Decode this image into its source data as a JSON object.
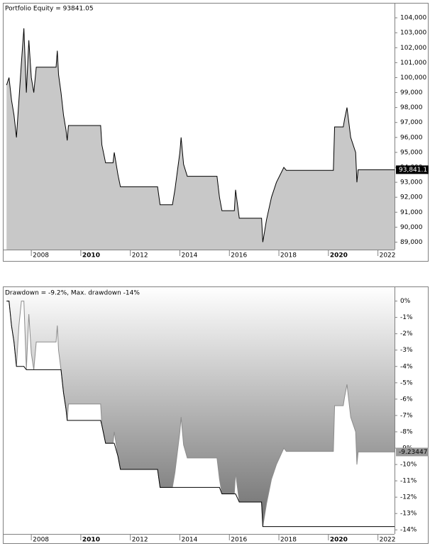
{
  "chart_data": [
    {
      "type": "area",
      "title": "Portfolio Equity = 93841.05",
      "x": [
        2007.0,
        2007.1,
        2007.2,
        2007.3,
        2007.4,
        2007.5,
        2007.6,
        2007.7,
        2007.8,
        2007.9,
        2008.0,
        2008.1,
        2008.2,
        2008.6,
        2009.0,
        2009.05,
        2009.1,
        2009.2,
        2009.3,
        2009.4,
        2009.45,
        2009.5,
        2010.1,
        2010.8,
        2010.85,
        2011.0,
        2011.3,
        2011.35,
        2011.5,
        2011.6,
        2013.1,
        2013.2,
        2013.7,
        2013.8,
        2014.0,
        2014.05,
        2014.15,
        2014.3,
        2015.5,
        2015.6,
        2015.7,
        2016.2,
        2016.25,
        2016.4,
        2017.3,
        2017.35,
        2017.5,
        2017.7,
        2017.9,
        2018.2,
        2018.3,
        2020.2,
        2020.25,
        2020.6,
        2020.65,
        2020.75,
        2020.9,
        2021.1,
        2021.15,
        2021.2,
        2022.67
      ],
      "series": [
        {
          "color": "#000000",
          "fill": "below",
          "fill_colors": [
            "#c8c8c8",
            "#c8c8c8"
          ],
          "values": [
            99500,
            100000,
            98500,
            97500,
            96000,
            98500,
            101000,
            103300,
            99000,
            102500,
            100000,
            99000,
            100700,
            100700,
            100700,
            101800,
            100200,
            99000,
            97500,
            96500,
            95800,
            96800,
            96800,
            96800,
            95500,
            94300,
            94300,
            95000,
            93500,
            92700,
            92700,
            91500,
            91500,
            92500,
            95000,
            96000,
            94200,
            93400,
            93400,
            92000,
            91100,
            91100,
            92500,
            90600,
            90600,
            89000,
            90500,
            92000,
            93000,
            94000,
            93800,
            93800,
            96700,
            96700,
            97200,
            98000,
            96000,
            95000,
            93000,
            93841.05,
            93841.05
          ]
        }
      ],
      "marker": {
        "value": 93841.1,
        "label": "93,841.1",
        "color": "#000000",
        "text_color": "#ffffff"
      },
      "xlim": [
        2006.85,
        2022.67
      ],
      "xticks": [
        2008,
        2010,
        2012,
        2014,
        2016,
        2018,
        2020,
        2022
      ],
      "xtick_bold": [
        false,
        true,
        false,
        false,
        false,
        false,
        true,
        false
      ],
      "ylim": [
        88500,
        105000
      ],
      "yticks": [
        {
          "value": 89000,
          "label": "89,000"
        },
        {
          "value": 90000,
          "label": "90,000"
        },
        {
          "value": 91000,
          "label": "91,000"
        },
        {
          "value": 92000,
          "label": "92,000"
        },
        {
          "value": 93000,
          "label": "93,000"
        },
        {
          "value": 94000,
          "label": "94,000"
        },
        {
          "value": 95000,
          "label": "95,000"
        },
        {
          "value": 96000,
          "label": "96,000"
        },
        {
          "value": 97000,
          "label": "97,000"
        },
        {
          "value": 98000,
          "label": "98,000"
        },
        {
          "value": 99000,
          "label": "99,000"
        },
        {
          "value": 100000,
          "label": "100,000"
        },
        {
          "value": 101000,
          "label": "101,000"
        },
        {
          "value": 102000,
          "label": "102,000"
        },
        {
          "value": 103000,
          "label": "103,000"
        },
        {
          "value": 104000,
          "label": "104,000"
        }
      ]
    },
    {
      "type": "area",
      "title": "Drawdown = -9.2%, Max. drawdown -14%",
      "x": [
        2007.0,
        2007.1,
        2007.2,
        2007.3,
        2007.4,
        2007.5,
        2007.6,
        2007.7,
        2007.8,
        2007.9,
        2008.0,
        2008.1,
        2008.2,
        2008.6,
        2009.0,
        2009.05,
        2009.1,
        2009.2,
        2009.3,
        2009.4,
        2009.45,
        2009.5,
        2010.1,
        2010.8,
        2010.85,
        2011.0,
        2011.3,
        2011.35,
        2011.5,
        2011.6,
        2013.1,
        2013.2,
        2013.7,
        2013.8,
        2014.0,
        2014.05,
        2014.15,
        2014.3,
        2015.5,
        2015.6,
        2015.7,
        2016.2,
        2016.25,
        2016.4,
        2017.3,
        2017.35,
        2017.5,
        2017.7,
        2017.9,
        2018.2,
        2018.3,
        2020.2,
        2020.25,
        2020.6,
        2020.65,
        2020.75,
        2020.9,
        2021.1,
        2021.15,
        2021.2,
        2022.67
      ],
      "series": [
        {
          "color": "#8c8c8c",
          "fill": "above",
          "fill_colors": [
            "#ffffff",
            "#6e6e6e"
          ],
          "values": [
            0,
            0,
            -1.5,
            -2.5,
            -4,
            -1.5,
            0,
            0,
            -4.2,
            -0.8,
            -3.2,
            -4.2,
            -2.5,
            -2.5,
            -2.5,
            -1.5,
            -3,
            -4.2,
            -5.6,
            -6.6,
            -7.3,
            -6.3,
            -6.3,
            -6.3,
            -7.6,
            -8.7,
            -8.7,
            -8,
            -9.5,
            -10.3,
            -10.3,
            -11.4,
            -11.4,
            -10.5,
            -8,
            -7.1,
            -8.8,
            -9.6,
            -9.6,
            -10.9,
            -11.8,
            -11.8,
            -10.5,
            -12.3,
            -12.3,
            -13.8,
            -12.4,
            -10.9,
            -10,
            -9,
            -9.2,
            -9.2,
            -6.4,
            -6.4,
            -5.9,
            -5.1,
            -7.1,
            -8,
            -10,
            -9.23447,
            -9.23447
          ]
        },
        {
          "color": "#000000",
          "values": [
            0,
            0,
            -1.5,
            -2.5,
            -4,
            -4,
            -4,
            -4,
            -4.2,
            -4.2,
            -4.2,
            -4.2,
            -4.2,
            -4.2,
            -4.2,
            -4.2,
            -4.2,
            -4.2,
            -5.6,
            -6.6,
            -7.3,
            -7.3,
            -7.3,
            -7.3,
            -7.6,
            -8.7,
            -8.7,
            -8.7,
            -9.5,
            -10.3,
            -10.3,
            -11.4,
            -11.4,
            -11.4,
            -11.4,
            -11.4,
            -11.4,
            -11.4,
            -11.4,
            -11.4,
            -11.8,
            -11.8,
            -11.8,
            -12.3,
            -12.3,
            -13.8,
            -13.8,
            -13.8,
            -13.8,
            -13.8,
            -13.8,
            -13.8,
            -13.8,
            -13.8,
            -13.8,
            -13.8,
            -13.8,
            -13.8,
            -13.8,
            -13.8,
            -13.8
          ]
        }
      ],
      "marker": {
        "value": -9.23447,
        "label": "-9.23447",
        "color": "#9a9a9a",
        "text_color": "#000000"
      },
      "xlim": [
        2006.85,
        2022.67
      ],
      "xticks": [
        2008,
        2010,
        2012,
        2014,
        2016,
        2018,
        2020,
        2022
      ],
      "xtick_bold": [
        false,
        true,
        false,
        false,
        false,
        false,
        true,
        false
      ],
      "ylim": [
        -14.25,
        0.85
      ],
      "yticks": [
        {
          "value": 0,
          "label": "0%"
        },
        {
          "value": -1,
          "label": "-1%"
        },
        {
          "value": -2,
          "label": "-2%"
        },
        {
          "value": -3,
          "label": "-3%"
        },
        {
          "value": -4,
          "label": "-4%"
        },
        {
          "value": -5,
          "label": "-5%"
        },
        {
          "value": -6,
          "label": "-6%"
        },
        {
          "value": -7,
          "label": "-7%"
        },
        {
          "value": -8,
          "label": "-8%"
        },
        {
          "value": -9,
          "label": "-9%"
        },
        {
          "value": -10,
          "label": "-10%"
        },
        {
          "value": -11,
          "label": "-11%"
        },
        {
          "value": -12,
          "label": "-12%"
        },
        {
          "value": -13,
          "label": "-13%"
        },
        {
          "value": -14,
          "label": "-14%"
        }
      ]
    }
  ]
}
